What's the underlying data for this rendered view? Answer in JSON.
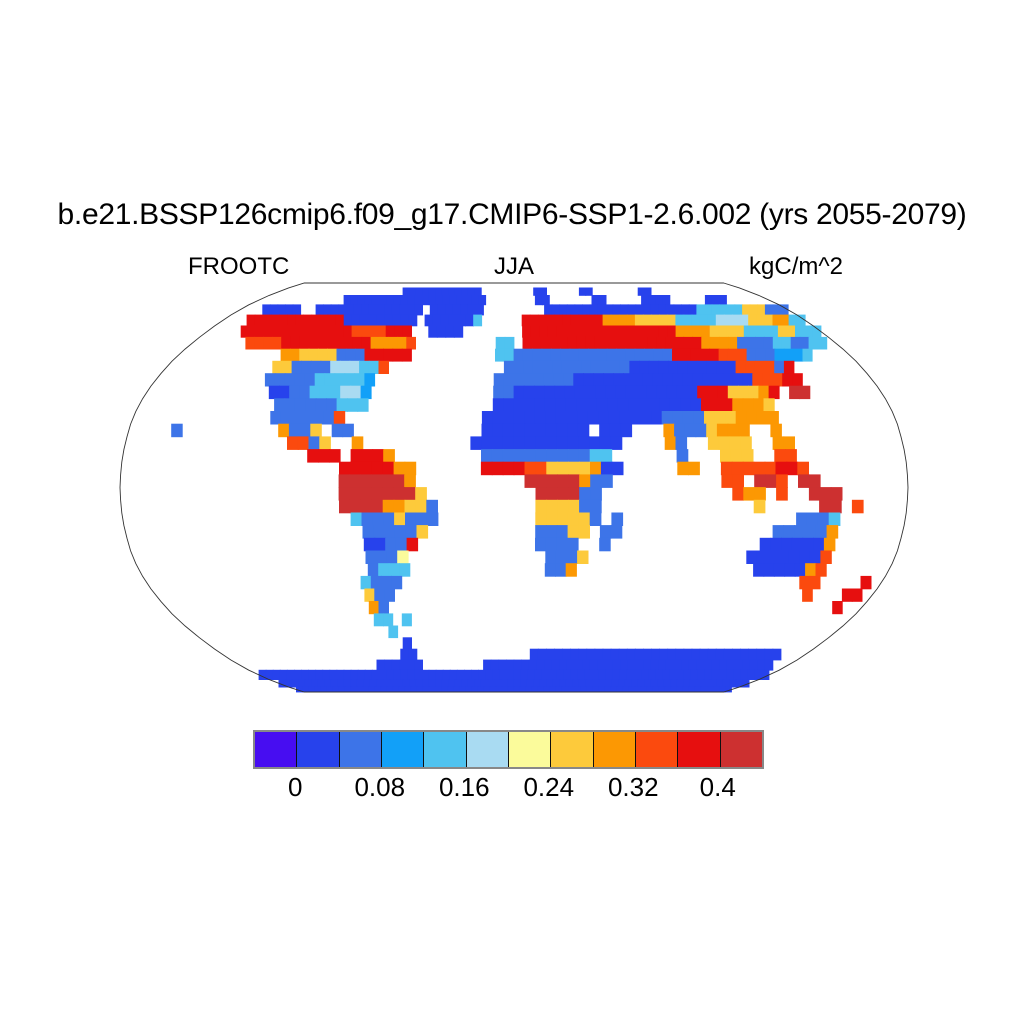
{
  "header": {
    "title": "b.e21.BSSP126cmip6.f09_g17.CMIP6-SSP1-2.6.002 (yrs 2055-2079)"
  },
  "labels": {
    "variable": "FROOTC",
    "season": "JJA",
    "units": "kgC/m^2"
  },
  "chart_data": {
    "type": "heatmap",
    "title": "b.e21.BSSP126cmip6.f09_g17.CMIP6-SSP1-2.6.002 (yrs 2055-2079)",
    "variable": "FROOTC",
    "season": "JJA",
    "units": "kgC/m^2",
    "projection": "robinson",
    "ocean_color": "#ffffff",
    "outline_color": "#333333",
    "levels": [
      0,
      0.04,
      0.08,
      0.12,
      0.16,
      0.2,
      0.24,
      0.28,
      0.32,
      0.36,
      0.4
    ],
    "colorbar_tick_labels": [
      "0",
      "0.08",
      "0.16",
      "0.24",
      "0.32",
      "0.4"
    ],
    "palette": [
      "#470DF1",
      "#2742EC",
      "#3D74E8",
      "#12A0F8",
      "#4FC3F0",
      "#A9DBF2",
      "#FBFB9B",
      "#FDCA3B",
      "#FC9803",
      "#FB4A0E",
      "#E60F0F",
      "#CD3030"
    ],
    "grid": {
      "description": "5-degree cells; rows run 90N to 90S, 72 columns from 180W to 180E; '.' = ocean/no data, chars 0-9,a,b = palette index",
      "rows": [
        "........................................................................",
        "...................111111111111........11.....11.......11...............",
        "............11111111111111111111.......11......11.....1111.....111......",
        "...11111..11111111111111.1111111........11111111111111111111444444777222",
        "...aaaaaaaaaaaa111111111.1111114.....aaaaaaaaaa8888777774444455557778844",
        "....aaaaaaaaaaaaa9999aaa..1111.......aaaaaaaaaaaaaaaaaa88887777444477444",
        "......9999aaaaaaaaaa88889.........44.aaaaaaaaaaaaaaaaaaaa88882222442244.",
        "...........887777222aaaaa.........4422222222222222222aaaaa9992223334....",
        "...........772222555449............22222222222221111111111199992a.......",
        "...........22222444443............22222222111111111111111111999aa.......",
        "............1122444553............22111111111111111111aaa7778a.bb.......",
        ".............222222444............11111111111111111111aaa8887...........",
        ".............2222229.............1111111111111111122227778888...........",
        "....2.........8227.22............1111111111.111...82227888..8...........",
        "...............9927..8..........11111111111111....82..7777..88..........",
        ".................aaa.aaa8........222222222244......2...777..99..........",
        "....................aaaaa88......aaaa997777811.....88..99999aa9.........",
        "....................bbbbbb8..........bbbbb822..........99.bb9.bb........",
        "....................bbbbbbb7..........bbbb22............988.9..bbb......",
        "....................bbbb88772.........777722..............7.....bb.9....",
        ".....................42227222.........777772.2................2224......",
        "......................222227..........22277.22..............222228......",
        "......................1122a...........2222..2..............1111118......",
        "......................2226.............2227...............11111119......",
        "......................2444.............228.................1111189......",
        ".....................4222.......................................99....a.",
        ".....................722.........................................9...aa.",
        ".....................82..............................................a..",
        ".....................44.4...............................................",
        "......................4.................................................",
        ".......................1................................................",
        "......................11..............1111111111111111111111111111111...",
        "..................111111........11111111111111111111111111111111111111..",
        "111111111111111111111111111111111111111111111111111111111111111111111111",
        "111111111111111111111111111111111111111111111111111111111111111111111111",
        "111111111111111111111111111111111111111111111111111111111111111111111111"
      ]
    }
  }
}
